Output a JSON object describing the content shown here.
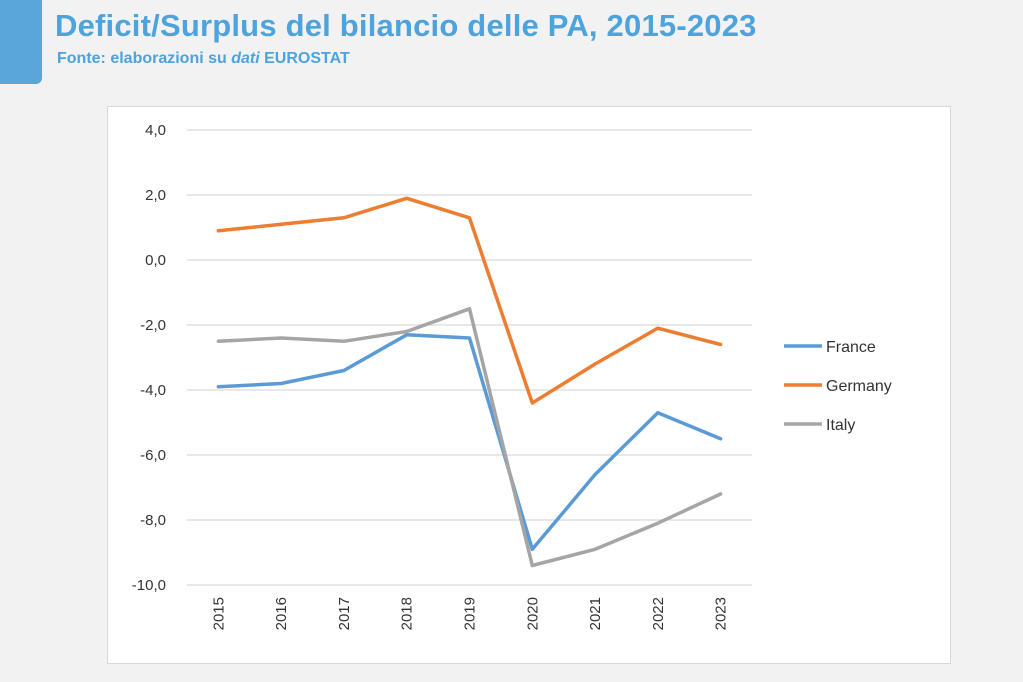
{
  "header": {
    "title": "Deficit/Surplus del bilancio delle PA, 2015-2023",
    "subtitle_prefix": "Fonte: elaborazioni su ",
    "subtitle_emph": "dati",
    "subtitle_suffix": " EUROSTAT",
    "accent_color": "#5aa5da"
  },
  "chart_data": {
    "type": "line",
    "title": "",
    "xlabel": "",
    "ylabel": "",
    "categories": [
      "2015",
      "2016",
      "2017",
      "2018",
      "2019",
      "2020",
      "2021",
      "2022",
      "2023"
    ],
    "ylim": [
      -10,
      4
    ],
    "yticks": [
      4,
      2,
      0,
      -2,
      -4,
      -6,
      -8,
      -10
    ],
    "ytick_labels": [
      "4,0",
      "2,0",
      "0,0",
      "-2,0",
      "-4,0",
      "-6,0",
      "-8,0",
      "-10,0"
    ],
    "grid": true,
    "legend_position": "right",
    "series": [
      {
        "name": "France",
        "color": "#5b9bd5",
        "values": [
          -3.9,
          -3.8,
          -3.4,
          -2.3,
          -2.4,
          -8.9,
          -6.6,
          -4.7,
          -5.5
        ]
      },
      {
        "name": "Germany",
        "color": "#ed7d31",
        "values": [
          0.9,
          1.1,
          1.3,
          1.9,
          1.3,
          -4.4,
          -3.2,
          -2.1,
          -2.6
        ]
      },
      {
        "name": "Italy",
        "color": "#a5a5a5",
        "values": [
          -2.5,
          -2.4,
          -2.5,
          -2.2,
          -1.5,
          -9.4,
          -8.9,
          -8.1,
          -7.2
        ]
      }
    ]
  }
}
